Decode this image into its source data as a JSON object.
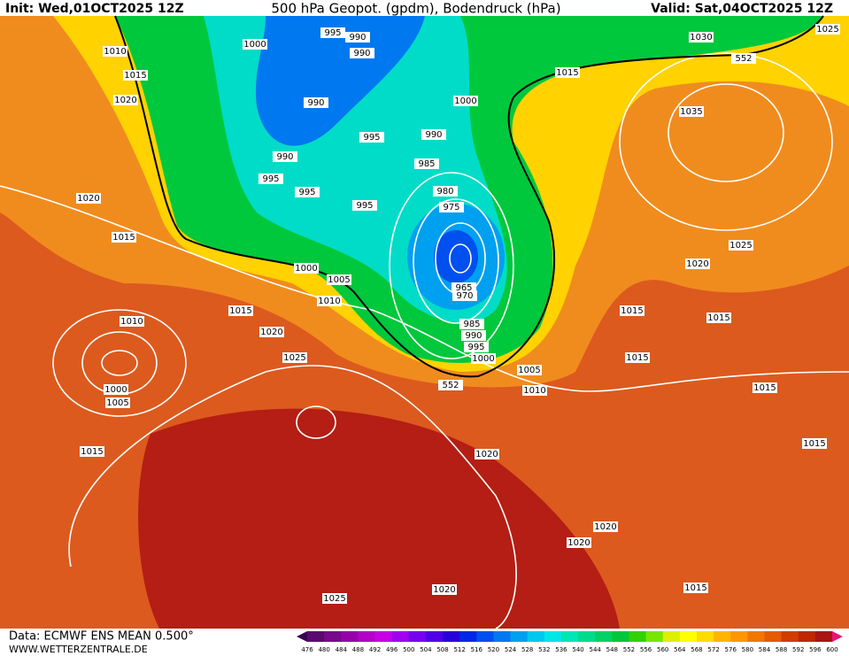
{
  "header": {
    "init": "Init: Wed,01OCT2025 12Z",
    "title": "500 hPa Geopot. (gpdm), Bodendruck (hPa)",
    "valid": "Valid: Sat,04OCT2025 12Z"
  },
  "isobar_labels": [
    995,
    990,
    990,
    1000,
    1010,
    1015,
    1020,
    990,
    990,
    995,
    995,
    995,
    990,
    1000,
    985,
    980,
    975,
    995,
    1020,
    1015,
    1000,
    1005,
    1010,
    1015,
    1010,
    1020,
    1025,
    1000,
    1005,
    965,
    970,
    985,
    990,
    995,
    1000,
    1005,
    1010,
    552,
    1015,
    1020,
    1030,
    1025,
    552,
    1015,
    1035,
    1025,
    1020,
    1015,
    1015,
    1015,
    1015,
    1015,
    1020,
    1020,
    1020,
    1025,
    1015
  ],
  "footer": {
    "source": "Data: ECMWF ENS MEAN 0.500°",
    "site": "WWW.WETTERZENTRALE.DE"
  },
  "colorbar": {
    "labels": [
      476,
      480,
      484,
      488,
      492,
      496,
      500,
      504,
      508,
      512,
      516,
      520,
      524,
      528,
      532,
      536,
      540,
      544,
      548,
      552,
      556,
      560,
      564,
      568,
      572,
      576,
      580,
      584,
      588,
      592,
      596,
      600
    ],
    "colors": [
      "#5a0a6e",
      "#780a8c",
      "#9600aa",
      "#b400c8",
      "#c800e6",
      "#a000f0",
      "#7800f0",
      "#5000e6",
      "#2800dc",
      "#0028e6",
      "#0050f0",
      "#0078f0",
      "#00a0f0",
      "#00c8f0",
      "#00e6e6",
      "#00e6b4",
      "#00dc8c",
      "#00d264",
      "#00c83c",
      "#32d200",
      "#78e600",
      "#dcf000",
      "#ffff00",
      "#ffdc00",
      "#ffb400",
      "#ff9600",
      "#f07800",
      "#e65a00",
      "#d23c00",
      "#be2800",
      "#aa1414"
    ]
  }
}
